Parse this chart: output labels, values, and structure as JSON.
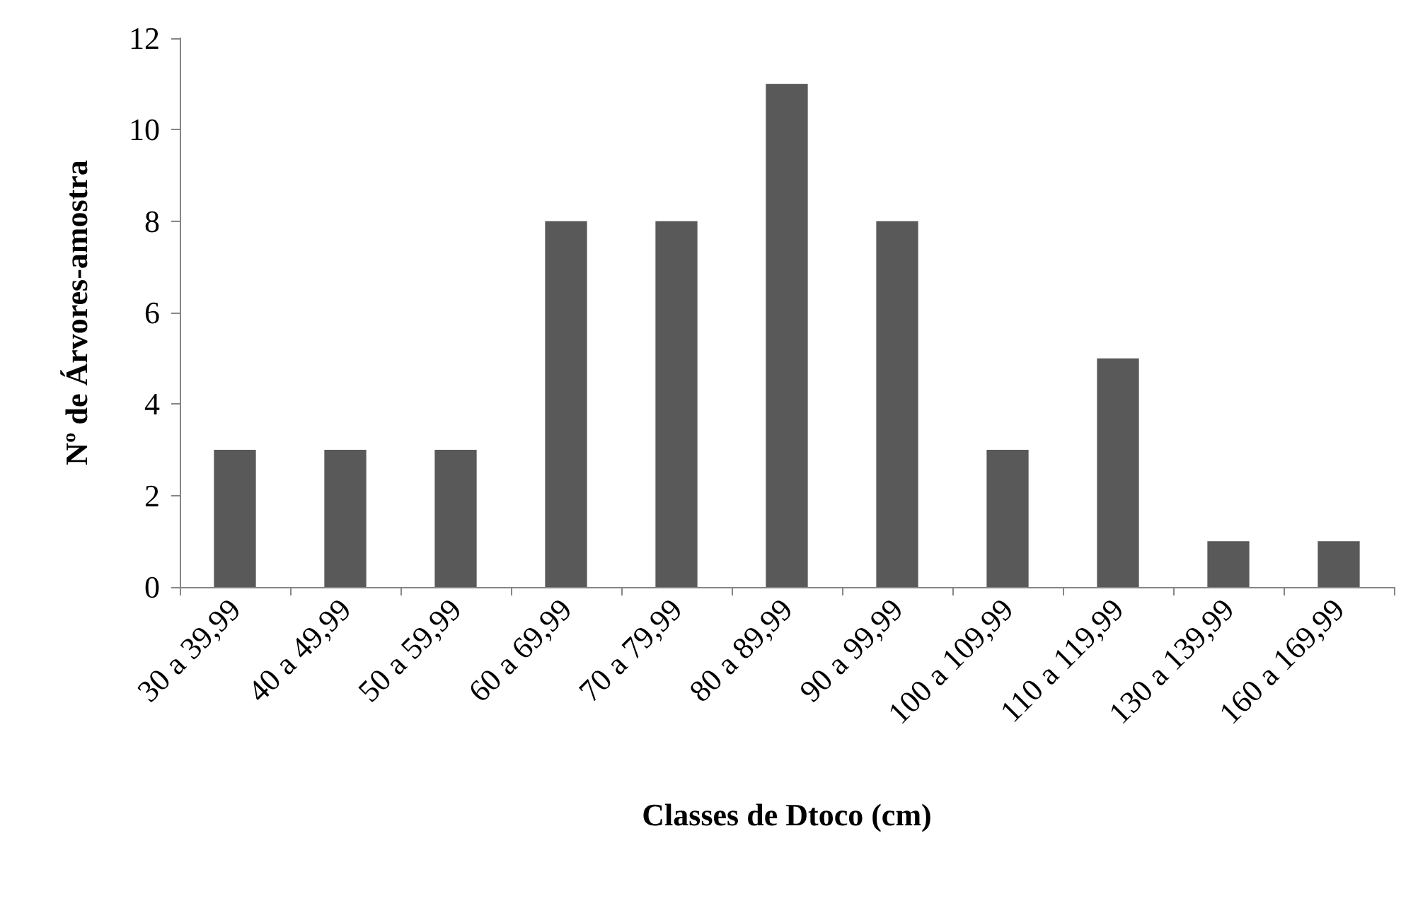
{
  "chart_data": {
    "type": "bar",
    "xlabel": "Classes de Dtoco (cm)",
    "ylabel": "Nº de Árvores-amostra",
    "categories": [
      "30 a 39,99",
      "40 a 49,99",
      "50 a 59,99",
      "60 a 69,99",
      "70 a 79,99",
      "80 a 89,99",
      "90 a 99,99",
      "100 a 109,99",
      "110 a 119,99",
      "130 a 139,99",
      "160 a 169,99"
    ],
    "values": [
      3,
      3,
      3,
      8,
      8,
      11,
      8,
      3,
      5,
      1,
      1
    ],
    "color": "#595959",
    "ylim": [
      0,
      12
    ],
    "yticks": [
      0,
      2,
      4,
      6,
      8,
      10,
      12
    ],
    "grid": false
  }
}
